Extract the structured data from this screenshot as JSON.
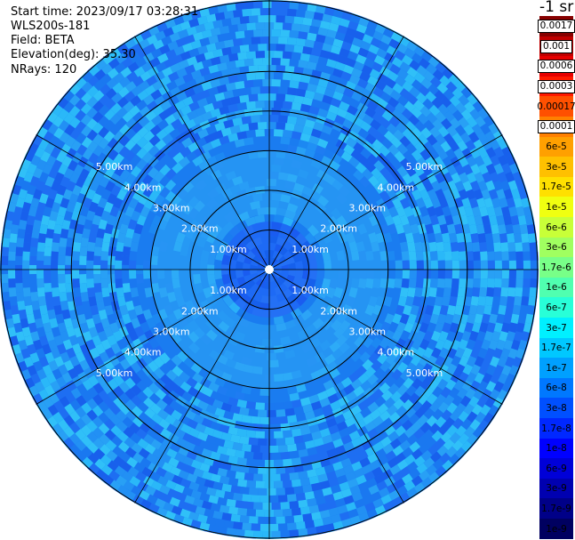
{
  "header": {
    "start_time": "Start time: 2023/09/17 03:28:31",
    "instrument": "WLS200s-181",
    "field": "Field: BETA",
    "elevation": "Elevation(deg): 35.30",
    "nrays": "NRays: 120"
  },
  "colorbar": {
    "title": "-1 sr",
    "labels": [
      "0.0017",
      "0.001",
      "0.0006",
      "0.0003",
      "0.00017",
      "0.0001",
      "6e-5",
      "3e-5",
      "1.7e-5",
      "1e-5",
      "6e-6",
      "3e-6",
      "1.7e-6",
      "1e-6",
      "6e-7",
      "3e-7",
      "1.7e-7",
      "1e-7",
      "6e-8",
      "3e-8",
      "1.7e-8",
      "1e-8",
      "6e-9",
      "3e-9",
      "1.7e-9",
      "1e-9"
    ],
    "colors": [
      "#870000",
      "#c00000",
      "#e60000",
      "#ff1a00",
      "#ff5000",
      "#ff8000",
      "#ffa000",
      "#ffc000",
      "#ffe000",
      "#f0ff10",
      "#c8ff38",
      "#a0ff60",
      "#78ff88",
      "#50ffb0",
      "#28ffd8",
      "#00f0ff",
      "#00c8ff",
      "#00a0ff",
      "#0078ff",
      "#0050ff",
      "#0028ff",
      "#0000ff",
      "#0000d8",
      "#0000b0",
      "#000088",
      "#000060"
    ],
    "boxed": [
      true,
      true,
      true,
      true,
      false,
      true,
      false,
      false,
      false,
      false,
      false,
      false,
      false,
      false,
      false,
      false,
      false,
      false,
      false,
      false,
      false,
      false,
      false,
      false,
      false,
      false
    ]
  },
  "chart_data": {
    "type": "heatmap",
    "projection": "polar-ppi",
    "field": "BETA",
    "n_rays": 120,
    "range_rings_km": [
      1,
      2,
      3,
      4,
      5
    ],
    "ring_labels": [
      "1.00km",
      "2.00km",
      "3.00km",
      "4.00km",
      "5.00km"
    ],
    "max_range_km": 6.8,
    "spoke_step_deg": 30,
    "value_by_range": [
      {
        "range_km": [
          0,
          0.3
        ],
        "value": "3e-8"
      },
      {
        "range_km": [
          0.3,
          1.2
        ],
        "value": "3e-8"
      },
      {
        "range_km": [
          1.2,
          3.2
        ],
        "value": "6e-8"
      },
      {
        "range_km": [
          3.2,
          6.8
        ],
        "value": "3e-8"
      }
    ]
  }
}
